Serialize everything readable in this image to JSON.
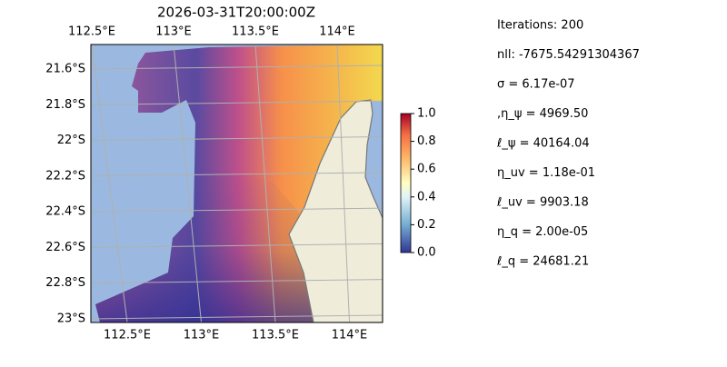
{
  "map": {
    "title": "2026-03-31T20:00:00Z",
    "lon_ticks": [
      {
        "value": 112.5,
        "label": "112.5°E"
      },
      {
        "value": 113,
        "label": "113°E"
      },
      {
        "value": 113.5,
        "label": "113.5°E"
      },
      {
        "value": 114,
        "label": "114°E"
      }
    ],
    "lat_ticks": [
      {
        "value": -21.6,
        "label": "21.6°S"
      },
      {
        "value": -21.8,
        "label": "21.8°S"
      },
      {
        "value": -22,
        "label": "22°S"
      },
      {
        "value": -22.2,
        "label": "22.2°S"
      },
      {
        "value": -22.4,
        "label": "22.4°S"
      },
      {
        "value": -22.6,
        "label": "22.6°S"
      },
      {
        "value": -22.8,
        "label": "22.8°S"
      },
      {
        "value": -23,
        "label": "23°S"
      }
    ]
  },
  "colorbar": {
    "lim": [
      0,
      1
    ],
    "ticks": [
      {
        "value": 0,
        "label": "0.0"
      },
      {
        "value": 0.2,
        "label": "0.2"
      },
      {
        "value": 0.4,
        "label": "0.4"
      },
      {
        "value": 0.6,
        "label": "0.6"
      },
      {
        "value": 0.8,
        "label": "0.8"
      },
      {
        "value": 1,
        "label": "1.0"
      }
    ]
  },
  "params": [
    "Iterations: 200",
    "nll: -7675.54291304367",
    "σ = 6.17e-07",
    ",η_ψ = 4969.50",
    "ℓ_ψ = 40164.04",
    "η_uv = 1.18e-01",
    "ℓ_uv = 9903.18",
    "η_q = 2.00e-05",
    "ℓ_q = 24681.21"
  ]
}
